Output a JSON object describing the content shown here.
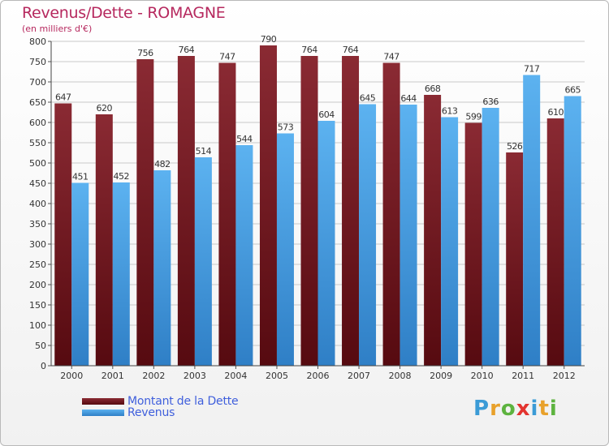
{
  "header": {
    "title": "Revenus/Dette - ROMAGNE",
    "subtitle": "(en milliers d'€)"
  },
  "legend": {
    "items": [
      {
        "label": "Montant de la Dette",
        "color": "#6a0f16"
      },
      {
        "label": "Revenus",
        "color": "#4ea5ea"
      }
    ]
  },
  "logo": {
    "text": "Proxiti",
    "letters": [
      {
        "ch": "P",
        "color": "#3b9bd6"
      },
      {
        "ch": "r",
        "color": "#e8a12b"
      },
      {
        "ch": "o",
        "color": "#5db33f"
      },
      {
        "ch": "x",
        "color": "#e3342f"
      },
      {
        "ch": "i",
        "color": "#3b9bd6"
      },
      {
        "ch": "t",
        "color": "#e8a12b"
      },
      {
        "ch": "i",
        "color": "#5db33f"
      }
    ]
  },
  "chart_data": {
    "type": "bar",
    "title": "Revenus/Dette - ROMAGNE",
    "ylabel": "(en milliers d'€)",
    "categories": [
      "2000",
      "2001",
      "2002",
      "2003",
      "2004",
      "2005",
      "2006",
      "2007",
      "2008",
      "2009",
      "2010",
      "2011",
      "2012"
    ],
    "series": [
      {
        "name": "Montant de la Dette",
        "color": "#6a0f16",
        "values": [
          647,
          620,
          756,
          764,
          747,
          790,
          764,
          764,
          747,
          668,
          599,
          526,
          610
        ]
      },
      {
        "name": "Revenus",
        "color": "#4ea5ea",
        "values": [
          451,
          452,
          482,
          514,
          544,
          573,
          604,
          645,
          644,
          613,
          636,
          717,
          665
        ]
      }
    ],
    "ylim": [
      0,
      800
    ],
    "yticks": [
      0,
      50,
      100,
      150,
      200,
      250,
      300,
      350,
      400,
      450,
      500,
      550,
      600,
      650,
      700,
      750,
      800
    ],
    "grid": true,
    "legend_position": "bottom-left"
  }
}
